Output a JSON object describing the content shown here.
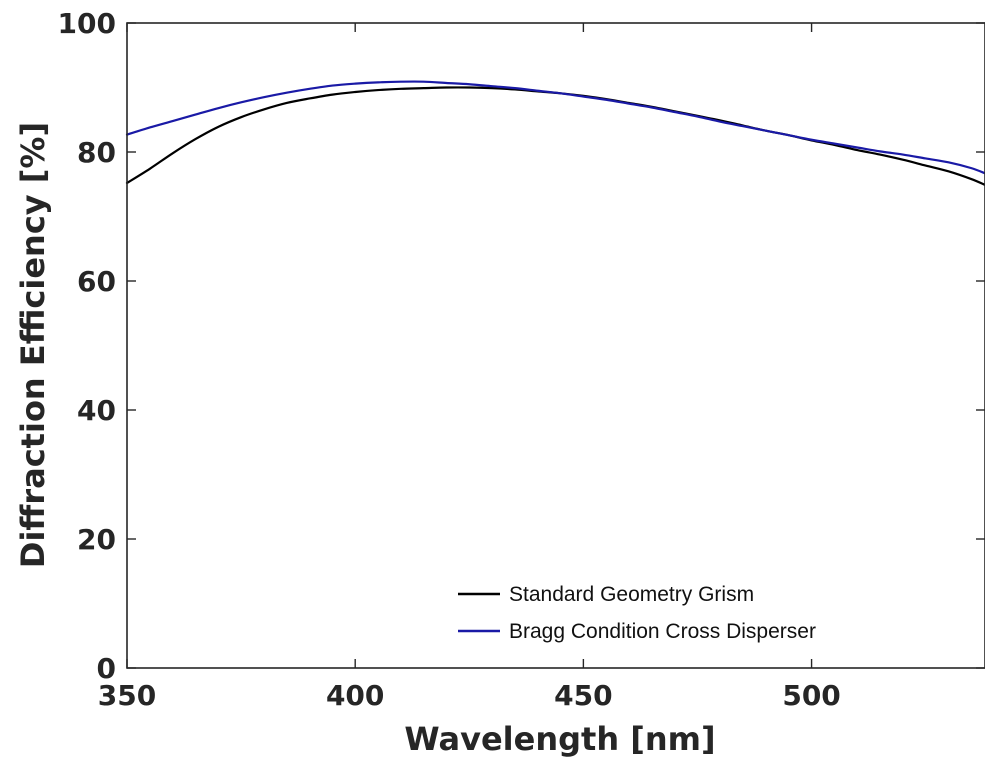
{
  "chart_data": {
    "type": "line",
    "title": "",
    "xlabel": "Wavelength [nm]",
    "ylabel": "Diffraction Efficiency [%]",
    "xlim": [
      350,
      538
    ],
    "ylim": [
      0,
      100
    ],
    "xticks": [
      350,
      400,
      450,
      500
    ],
    "yticks": [
      0,
      20,
      40,
      60,
      80,
      100
    ],
    "grid": false,
    "legend_position": "lower-right",
    "series": [
      {
        "name": "Standard Geometry Grism",
        "color": "#000000",
        "x": [
          350,
          355,
          360,
          365,
          370,
          375,
          380,
          385,
          390,
          395,
          400,
          405,
          410,
          415,
          420,
          425,
          430,
          435,
          440,
          445,
          450,
          455,
          460,
          465,
          470,
          475,
          480,
          485,
          490,
          495,
          500,
          505,
          510,
          515,
          520,
          525,
          530,
          535,
          538
        ],
        "y": [
          75.2,
          77.4,
          79.8,
          82.0,
          83.9,
          85.4,
          86.6,
          87.6,
          88.3,
          88.9,
          89.3,
          89.6,
          89.8,
          89.9,
          90.0,
          90.0,
          89.9,
          89.7,
          89.4,
          89.1,
          88.7,
          88.2,
          87.6,
          87.0,
          86.3,
          85.6,
          84.9,
          84.1,
          83.3,
          82.6,
          81.8,
          81.1,
          80.3,
          79.6,
          78.8,
          77.9,
          77.0,
          75.8,
          74.9
        ]
      },
      {
        "name": "Bragg Condition Cross Disperser",
        "color": "#1a1aa6",
        "x": [
          350,
          355,
          360,
          365,
          370,
          375,
          380,
          385,
          390,
          395,
          400,
          405,
          410,
          415,
          420,
          425,
          430,
          435,
          440,
          445,
          450,
          455,
          460,
          465,
          470,
          475,
          480,
          485,
          490,
          495,
          500,
          505,
          510,
          515,
          520,
          525,
          530,
          535,
          538
        ],
        "y": [
          82.7,
          83.8,
          84.8,
          85.8,
          86.8,
          87.7,
          88.5,
          89.2,
          89.8,
          90.3,
          90.6,
          90.8,
          90.9,
          90.9,
          90.7,
          90.5,
          90.2,
          89.9,
          89.5,
          89.1,
          88.6,
          88.1,
          87.5,
          86.9,
          86.2,
          85.5,
          84.7,
          84.0,
          83.3,
          82.6,
          81.9,
          81.3,
          80.7,
          80.1,
          79.6,
          79.0,
          78.4,
          77.5,
          76.7
        ]
      }
    ]
  }
}
